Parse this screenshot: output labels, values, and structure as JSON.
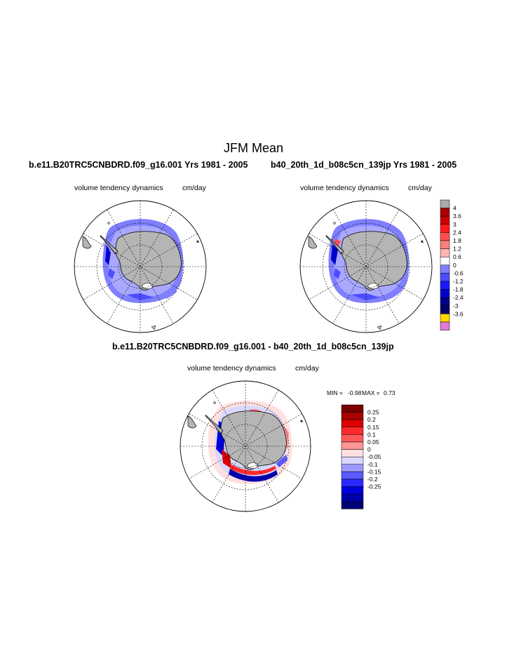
{
  "title": "JFM Mean",
  "panels": [
    {
      "title": "b.e11.B20TRC5CNBDRD.f09_g16.001  Yrs 1981 - 2005",
      "variable": "volume tendency dynamics",
      "units": "cm/day"
    },
    {
      "title": "b40_20th_1d_b08c5cn_139jp  Yrs 1981 - 2005",
      "variable": "volume tendency dynamics",
      "units": "cm/day"
    },
    {
      "title": "b.e11.B20TRC5CNBDRD.f09_g16.001 - b40_20th_1d_b08c5cn_139jp",
      "variable": "volume tendency dynamics",
      "units": "cm/day",
      "min_label": "MIN =",
      "min_value": "-0.98",
      "max_label": "MAX =",
      "max_value": "0.73"
    }
  ],
  "colorbar_top": {
    "labels": [
      "4",
      "3.6",
      "3",
      "2.4",
      "1.8",
      "1.2",
      "0.6",
      "0",
      "-0.6",
      "-1.2",
      "-1.8",
      "-2.4",
      "-3",
      "-3.6"
    ],
    "colors": [
      "#aaaaaa",
      "#aa0000",
      "#cc0000",
      "#ff1a1a",
      "#ff4d4d",
      "#ff7f7f",
      "#ffb3b3",
      "#ffffff",
      "#7f7fff",
      "#4d4dff",
      "#1a1aff",
      "#0000cc",
      "#00008b",
      "#000066",
      "#ffd700",
      "#e07ad8"
    ]
  },
  "colorbar_bottom": {
    "labels": [
      "0.25",
      "0.2",
      "0.15",
      "0.1",
      "0.05",
      "0",
      "-0.05",
      "-0.1",
      "-0.15",
      "-0.2",
      "-0.25"
    ],
    "colors": [
      "#7a0000",
      "#aa0000",
      "#dd0000",
      "#ff2a2a",
      "#ff5a5a",
      "#ff9595",
      "#ffe0e0",
      "#d8d8ff",
      "#9a9aff",
      "#5a5aff",
      "#2a2aff",
      "#0000dd",
      "#0000aa",
      "#000077"
    ]
  }
}
